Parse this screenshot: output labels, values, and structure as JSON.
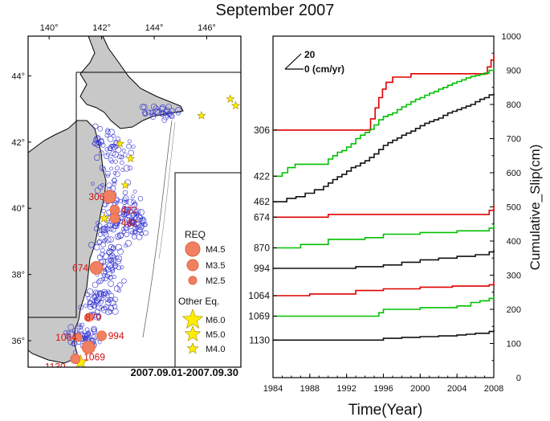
{
  "title": "September 2007",
  "map": {
    "lon_ticks": [
      "140°",
      "142°",
      "144°",
      "146°"
    ],
    "lat_ticks": [
      "44°",
      "42°",
      "40°",
      "38°",
      "36°"
    ],
    "date_range": "2007.09.01-2007.09.30",
    "legend": {
      "req_header": "REQ",
      "req_items": [
        "M4.5",
        "M3.5",
        "M2.5"
      ],
      "other_header": "Other Eq.",
      "other_items": [
        "M6.0",
        "M5.0",
        "M4.0"
      ]
    },
    "req_labels": [
      {
        "id": "306",
        "lon": 142.3,
        "lat": 40.35
      },
      {
        "id": "422",
        "lon": 142.5,
        "lat": 39.95
      },
      {
        "id": "462",
        "lon": 142.5,
        "lat": 39.7
      },
      {
        "id": "674",
        "lon": 141.8,
        "lat": 38.2
      },
      {
        "id": "870",
        "lon": 141.5,
        "lat": 36.7
      },
      {
        "id": "994",
        "lon": 142.0,
        "lat": 36.15
      },
      {
        "id": "1064",
        "lon": 141.1,
        "lat": 36.1
      },
      {
        "id": "1069",
        "lon": 141.5,
        "lat": 35.8
      },
      {
        "id": "1130",
        "lon": 141.0,
        "lat": 35.45
      }
    ]
  },
  "chart_data": {
    "type": "line",
    "xlabel": "Time(Year)",
    "ylabel": "Cumulative_Slip(cm)",
    "xlim": [
      1984,
      2008
    ],
    "ylim": [
      0,
      1000
    ],
    "x_ticks": [
      1984,
      1988,
      1992,
      1996,
      2000,
      2004,
      2008
    ],
    "y_ticks": [
      0,
      100,
      200,
      300,
      400,
      500,
      600,
      700,
      800,
      900,
      1000
    ],
    "scale_bar": {
      "value": "20",
      "label": "0 (cm/yr)"
    },
    "colors": {
      "red": "#e00000",
      "green": "#00c000",
      "black": "#111111"
    },
    "series": [
      {
        "name": "306",
        "color": "red",
        "x": [
          1984,
          1990,
          1994.6,
          1995.1,
          1995.5,
          1995.9,
          1996.3,
          1997,
          1999,
          2003,
          2007.3,
          2007.7,
          2008
        ],
        "y": [
          725,
          725,
          758,
          790,
          820,
          845,
          865,
          880,
          890,
          890,
          910,
          930,
          945
        ]
      },
      {
        "name": "422",
        "color": "green",
        "x": [
          1984,
          1985,
          1985.6,
          1986.4,
          1986.9,
          1990,
          1990.5,
          1991,
          1991.5,
          1992,
          1992.5,
          1993,
          1993.5,
          1994,
          1994.5,
          1995,
          1995.5,
          1996,
          1996.5,
          1997,
          1997.5,
          1998,
          1998.5,
          1999,
          1999.5,
          2000,
          2000.5,
          2001,
          2001.5,
          2002,
          2002.5,
          2003,
          2003.5,
          2004,
          2004.5,
          2005,
          2005.5,
          2006,
          2006.5,
          2007,
          2007.5,
          2008
        ],
        "y": [
          590,
          600,
          615,
          625,
          625,
          640,
          650,
          660,
          665,
          675,
          685,
          700,
          710,
          718,
          727,
          740,
          755,
          765,
          770,
          775,
          785,
          793,
          800,
          808,
          815,
          820,
          827,
          833,
          838,
          845,
          850,
          856,
          862,
          867,
          872,
          878,
          882,
          885,
          888,
          892,
          900,
          905
        ]
      },
      {
        "name": "462",
        "color": "black",
        "x": [
          1984,
          1985.5,
          1986.5,
          1987.5,
          1988.5,
          1989.5,
          1990,
          1990.5,
          1991,
          1991.5,
          1992,
          1992.5,
          1993,
          1993.5,
          1994,
          1994.5,
          1995,
          1995.5,
          1996,
          1996.5,
          1997,
          1997.5,
          1998,
          1998.5,
          1999,
          1999.5,
          2000,
          2000.5,
          2001,
          2001.5,
          2002,
          2002.5,
          2003,
          2003.5,
          2004,
          2004.5,
          2005,
          2005.5,
          2006,
          2006.5,
          2007,
          2007.5,
          2008
        ],
        "y": [
          515,
          525,
          530,
          540,
          550,
          560,
          570,
          580,
          588,
          595,
          605,
          615,
          620,
          628,
          635,
          645,
          655,
          668,
          680,
          688,
          695,
          702,
          710,
          716,
          722,
          730,
          738,
          745,
          750,
          755,
          760,
          768,
          775,
          780,
          785,
          790,
          795,
          800,
          808,
          815,
          820,
          828,
          832
        ]
      },
      {
        "name": "674",
        "color": "red",
        "x": [
          1984,
          1990,
          2007.5,
          2008
        ],
        "y": [
          470,
          478,
          490,
          505
        ]
      },
      {
        "name": "870",
        "color": "green",
        "x": [
          1984,
          1987,
          1990,
          1994,
          1996,
          2000,
          2004,
          2007.5,
          2008
        ],
        "y": [
          380,
          390,
          405,
          410,
          420,
          425,
          430,
          438,
          448
        ]
      },
      {
        "name": "994",
        "color": "black",
        "x": [
          1984,
          1993,
          1996,
          1998,
          2000,
          2002,
          2004,
          2006,
          2007.5,
          2008
        ],
        "y": [
          320,
          325,
          330,
          338,
          345,
          350,
          355,
          360,
          368,
          375
        ]
      },
      {
        "name": "1064",
        "color": "red",
        "x": [
          1984,
          1988,
          1993,
          1996,
          2000,
          2003.5,
          2007.5,
          2008
        ],
        "y": [
          240,
          245,
          255,
          260,
          265,
          268,
          272,
          280
        ]
      },
      {
        "name": "1069",
        "color": "green",
        "x": [
          1984,
          1994,
          1995.5,
          1996,
          2000,
          2004,
          2005.5,
          2006.5,
          2007.5,
          2008
        ],
        "y": [
          180,
          180,
          190,
          200,
          205,
          210,
          220,
          225,
          232,
          238
        ]
      },
      {
        "name": "1130",
        "color": "black",
        "x": [
          1984,
          1994.5,
          1996,
          1998,
          2000,
          2002,
          2004,
          2005,
          2006,
          2007.5,
          2008
        ],
        "y": [
          110,
          110,
          115,
          118,
          120,
          122,
          125,
          127,
          130,
          135,
          140
        ]
      }
    ],
    "row_labels": [
      "306",
      "422",
      "462",
      "674",
      "870",
      "994",
      "1064",
      "1069",
      "1130"
    ]
  }
}
